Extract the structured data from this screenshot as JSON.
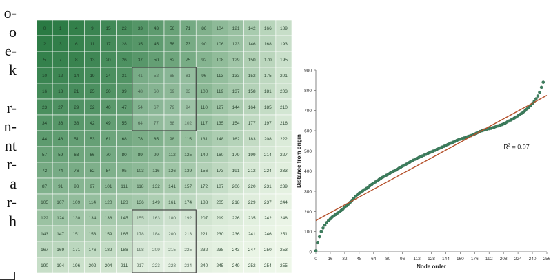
{
  "side_text": [
    "o-",
    "o",
    "e-",
    "k",
    "",
    "r-",
    "n-",
    "nt",
    "r-",
    "a",
    "r-",
    "h"
  ],
  "chart_data": [
    {
      "type": "heatmap",
      "title": "",
      "rows": 16,
      "cols": 16,
      "values": [
        [
          0,
          1,
          4,
          9,
          15,
          22,
          33,
          43,
          56,
          71,
          86,
          104,
          121,
          142,
          166,
          189
        ],
        [
          2,
          3,
          6,
          11,
          17,
          28,
          35,
          45,
          58,
          73,
          90,
          106,
          123,
          146,
          168,
          193
        ],
        [
          5,
          7,
          8,
          13,
          20,
          26,
          37,
          50,
          62,
          75,
          92,
          108,
          129,
          150,
          170,
          195
        ],
        [
          10,
          12,
          14,
          19,
          24,
          31,
          41,
          52,
          65,
          81,
          96,
          113,
          133,
          152,
          175,
          201
        ],
        [
          16,
          18,
          21,
          25,
          30,
          39,
          48,
          60,
          69,
          83,
          100,
          119,
          137,
          158,
          181,
          203
        ],
        [
          23,
          27,
          29,
          32,
          40,
          47,
          54,
          67,
          79,
          94,
          110,
          127,
          144,
          164,
          185,
          210
        ],
        [
          34,
          36,
          38,
          42,
          49,
          55,
          64,
          77,
          88,
          102,
          117,
          135,
          154,
          177,
          197,
          216
        ],
        [
          44,
          46,
          51,
          53,
          61,
          68,
          78,
          85,
          98,
          115,
          131,
          148,
          162,
          183,
          208,
          222
        ],
        [
          57,
          59,
          63,
          66,
          70,
          80,
          89,
          99,
          112,
          125,
          140,
          160,
          179,
          199,
          214,
          227
        ],
        [
          72,
          74,
          76,
          82,
          84,
          95,
          103,
          116,
          126,
          139,
          156,
          173,
          191,
          212,
          224,
          233
        ],
        [
          87,
          91,
          93,
          97,
          101,
          111,
          118,
          132,
          141,
          157,
          172,
          187,
          206,
          220,
          231,
          239
        ],
        [
          105,
          107,
          109,
          114,
          120,
          128,
          136,
          149,
          161,
          174,
          188,
          205,
          218,
          229,
          237,
          244
        ],
        [
          122,
          124,
          130,
          134,
          138,
          145,
          155,
          163,
          180,
          192,
          207,
          219,
          226,
          235,
          242,
          248
        ],
        [
          143,
          147,
          151,
          153,
          159,
          165,
          178,
          184,
          200,
          213,
          221,
          230,
          236,
          241,
          246,
          251
        ],
        [
          167,
          169,
          171,
          176,
          182,
          186,
          198,
          209,
          215,
          225,
          232,
          238,
          243,
          247,
          250,
          253
        ],
        [
          190,
          194,
          196,
          202,
          204,
          211,
          217,
          223,
          228,
          234,
          240,
          245,
          249,
          252,
          254,
          255
        ]
      ],
      "highlight_box": {
        "rows": [
          3,
          6
        ],
        "cols": [
          6,
          9
        ]
      },
      "highlight_box_2": {
        "rows": [
          12,
          15
        ],
        "cols": [
          6,
          9
        ]
      },
      "color_dark": "#2a7a43",
      "color_light": "#eef7e9"
    },
    {
      "type": "scatter",
      "xlabel": "Node order",
      "ylabel": "Distance from origin",
      "xlim": [
        0,
        256
      ],
      "ylim": [
        0,
        900
      ],
      "xticks": [
        0,
        16,
        32,
        48,
        64,
        80,
        96,
        112,
        128,
        144,
        160,
        176,
        192,
        208,
        224,
        240,
        256
      ],
      "yticks": [
        0,
        100,
        200,
        300,
        400,
        500,
        600,
        700,
        800,
        900
      ],
      "annotation": "R",
      "annotation_sup": "2",
      "annotation_value": " = 0.97",
      "fit_line": {
        "x": [
          0,
          256
        ],
        "y": [
          155,
          775
        ],
        "color": "#b5502a"
      },
      "point_color": "#3d7f5e",
      "points": [
        [
          0,
          5
        ],
        [
          2,
          45
        ],
        [
          4,
          75
        ],
        [
          6,
          100
        ],
        [
          8,
          118
        ],
        [
          10,
          132
        ],
        [
          12,
          145
        ],
        [
          14,
          155
        ],
        [
          16,
          163
        ],
        [
          18,
          172
        ],
        [
          20,
          178
        ],
        [
          22,
          185
        ],
        [
          24,
          192
        ],
        [
          26,
          198
        ],
        [
          28,
          205
        ],
        [
          30,
          212
        ],
        [
          32,
          220
        ],
        [
          34,
          228
        ],
        [
          36,
          236
        ],
        [
          38,
          245
        ],
        [
          40,
          255
        ],
        [
          42,
          265
        ],
        [
          44,
          275
        ],
        [
          46,
          283
        ],
        [
          48,
          290
        ],
        [
          50,
          296
        ],
        [
          52,
          302
        ],
        [
          54,
          308
        ],
        [
          56,
          314
        ],
        [
          58,
          320
        ],
        [
          60,
          328
        ],
        [
          62,
          334
        ],
        [
          64,
          340
        ],
        [
          66,
          346
        ],
        [
          68,
          352
        ],
        [
          70,
          358
        ],
        [
          72,
          364
        ],
        [
          74,
          369
        ],
        [
          76,
          374
        ],
        [
          78,
          379
        ],
        [
          80,
          384
        ],
        [
          82,
          389
        ],
        [
          84,
          394
        ],
        [
          86,
          399
        ],
        [
          88,
          404
        ],
        [
          90,
          409
        ],
        [
          92,
          414
        ],
        [
          94,
          419
        ],
        [
          96,
          424
        ],
        [
          98,
          429
        ],
        [
          100,
          434
        ],
        [
          102,
          439
        ],
        [
          104,
          444
        ],
        [
          106,
          449
        ],
        [
          108,
          454
        ],
        [
          110,
          459
        ],
        [
          112,
          463
        ],
        [
          114,
          467
        ],
        [
          116,
          471
        ],
        [
          118,
          475
        ],
        [
          120,
          479
        ],
        [
          122,
          483
        ],
        [
          124,
          487
        ],
        [
          126,
          491
        ],
        [
          128,
          495
        ],
        [
          130,
          499
        ],
        [
          132,
          503
        ],
        [
          134,
          507
        ],
        [
          136,
          511
        ],
        [
          138,
          515
        ],
        [
          140,
          519
        ],
        [
          142,
          523
        ],
        [
          144,
          527
        ],
        [
          146,
          531
        ],
        [
          148,
          535
        ],
        [
          150,
          539
        ],
        [
          152,
          543
        ],
        [
          154,
          547
        ],
        [
          156,
          551
        ],
        [
          158,
          555
        ],
        [
          160,
          558
        ],
        [
          162,
          561
        ],
        [
          164,
          564
        ],
        [
          166,
          567
        ],
        [
          168,
          570
        ],
        [
          170,
          573
        ],
        [
          172,
          576
        ],
        [
          174,
          580
        ],
        [
          176,
          584
        ],
        [
          178,
          588
        ],
        [
          180,
          592
        ],
        [
          182,
          596
        ],
        [
          184,
          600
        ],
        [
          186,
          603
        ],
        [
          188,
          606
        ],
        [
          190,
          608
        ],
        [
          192,
          610
        ],
        [
          194,
          612
        ],
        [
          196,
          615
        ],
        [
          198,
          618
        ],
        [
          200,
          621
        ],
        [
          202,
          624
        ],
        [
          204,
          627
        ],
        [
          206,
          630
        ],
        [
          208,
          634
        ],
        [
          210,
          638
        ],
        [
          212,
          643
        ],
        [
          214,
          648
        ],
        [
          216,
          653
        ],
        [
          218,
          658
        ],
        [
          220,
          663
        ],
        [
          222,
          668
        ],
        [
          224,
          674
        ],
        [
          226,
          680
        ],
        [
          228,
          686
        ],
        [
          230,
          693
        ],
        [
          232,
          700
        ],
        [
          234,
          708
        ],
        [
          236,
          716
        ],
        [
          238,
          725
        ],
        [
          240,
          735
        ],
        [
          242,
          745
        ],
        [
          244,
          758
        ],
        [
          246,
          772
        ],
        [
          248,
          790
        ],
        [
          250,
          815
        ],
        [
          252,
          840
        ]
      ]
    }
  ]
}
